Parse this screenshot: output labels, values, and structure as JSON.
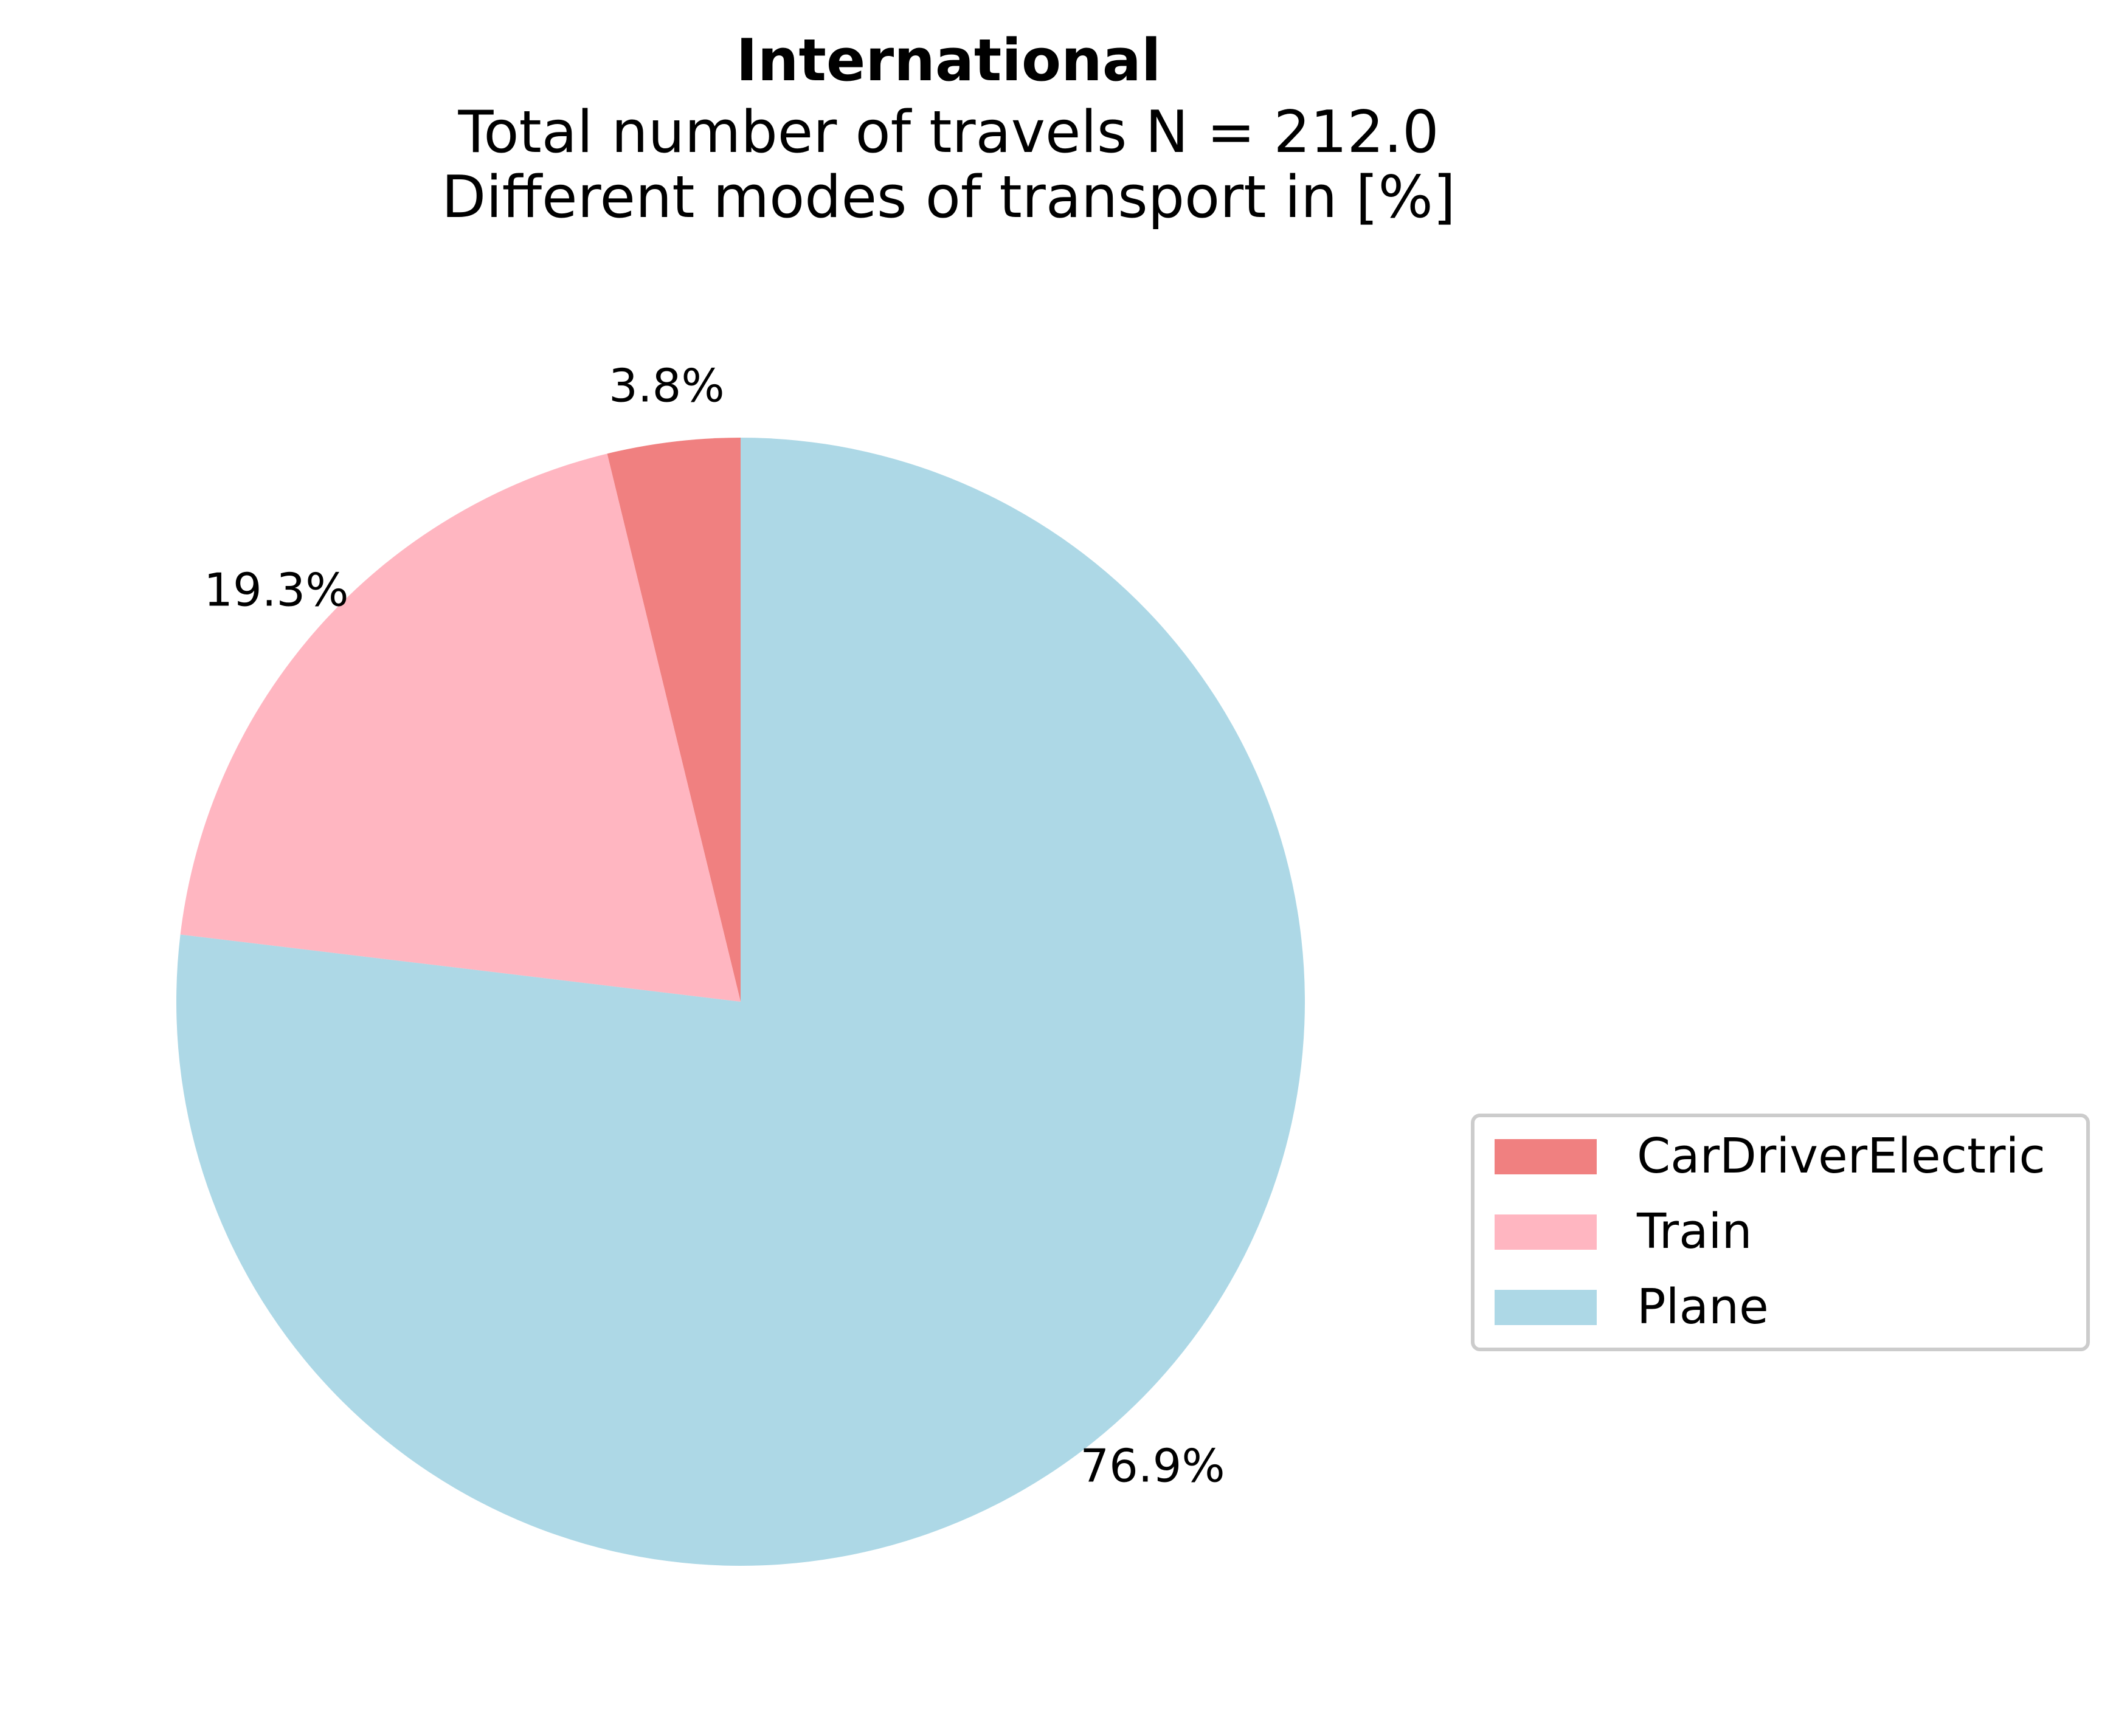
{
  "chart_data": {
    "type": "pie",
    "title": "International",
    "subtitle_lines": [
      "Total number of travels N = 212.0",
      "Different modes of transport in [%]"
    ],
    "slices": [
      {
        "label": "CarDriverElectric",
        "value": 3.8,
        "display": "3.8%",
        "color": "#F08080"
      },
      {
        "label": "Train",
        "value": 19.3,
        "display": "19.3%",
        "color": "#FFB6C1"
      },
      {
        "label": "Plane",
        "value": 76.9,
        "display": "76.9%",
        "color": "#ADD8E6"
      }
    ],
    "start_angle_deg": 90,
    "direction": "counterclockwise",
    "legend_placement": "right"
  }
}
